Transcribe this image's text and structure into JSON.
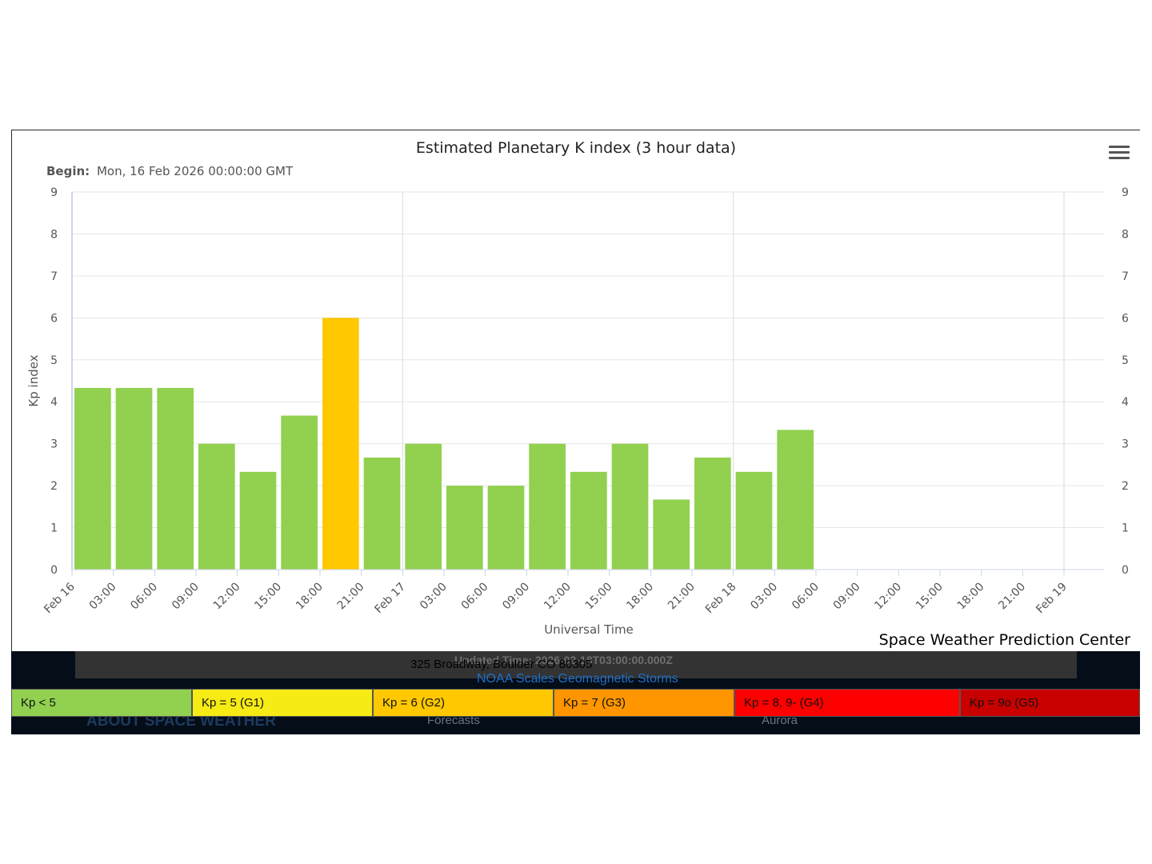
{
  "footer": {
    "updated": "Updated Time: 2026-02-18T03:00:00.000Z",
    "address": "325 Broadway, Boulder CO 80305",
    "noaa_link": "NOAA Scales Geomagnetic Storms",
    "about": "ABOUT SPACE WEATHER",
    "forecasts": "Forecasts",
    "aurora": "Aurora"
  },
  "credit": "Space Weather Prediction Center",
  "legend": [
    {
      "label": "Kp < 5",
      "color": "#92d050"
    },
    {
      "label": "Kp = 5 (G1)",
      "color": "#f6eb14"
    },
    {
      "label": "Kp = 6 (G2)",
      "color": "#ffc800"
    },
    {
      "label": "Kp = 7 (G3)",
      "color": "#ff9600"
    },
    {
      "label": "Kp = 8, 9- (G4)",
      "color": "#ff0000"
    },
    {
      "label": "Kp = 9o (G5)",
      "color": "#c80000"
    }
  ],
  "chart_data": {
    "type": "bar",
    "title": "Estimated Planetary K index (3 hour data)",
    "subtitle_label": "Begin:",
    "subtitle_value": "Mon, 16 Feb 2026 00:00:00 GMT",
    "xlabel": "Universal Time",
    "ylabel": "Kp index",
    "ylim": [
      0,
      9
    ],
    "yticks": [
      "0",
      "1",
      "2",
      "3",
      "4",
      "5",
      "6",
      "7",
      "8",
      "9"
    ],
    "xticks": [
      "Feb 16",
      "03:00",
      "06:00",
      "09:00",
      "12:00",
      "15:00",
      "18:00",
      "21:00",
      "Feb 17",
      "03:00",
      "06:00",
      "09:00",
      "12:00",
      "15:00",
      "18:00",
      "21:00",
      "Feb 18",
      "03:00",
      "06:00",
      "09:00",
      "12:00",
      "15:00",
      "18:00",
      "21:00",
      "Feb 19"
    ],
    "series": [
      {
        "values": [
          4.33,
          4.33,
          4.33,
          3.0,
          2.33,
          3.67,
          6.0,
          2.67,
          3.0,
          2.0,
          2.0,
          3.0,
          2.33,
          3.0,
          1.67,
          2.67,
          2.33,
          3.33
        ],
        "colors": [
          "#92d050",
          "#92d050",
          "#92d050",
          "#92d050",
          "#92d050",
          "#92d050",
          "#ffc800",
          "#92d050",
          "#92d050",
          "#92d050",
          "#92d050",
          "#92d050",
          "#92d050",
          "#92d050",
          "#92d050",
          "#92d050",
          "#92d050",
          "#92d050"
        ]
      }
    ],
    "grid": true,
    "legend": "none"
  }
}
